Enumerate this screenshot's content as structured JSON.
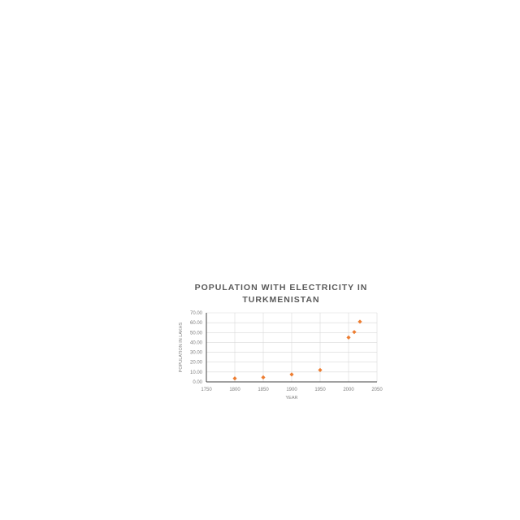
{
  "chart_data": {
    "type": "scatter",
    "title": "POPULATION WITH ELECTRICITY IN TURKMENISTAN",
    "xlabel": "YEAR",
    "ylabel": "POPULATION IN LAKHS",
    "xlim": [
      1750,
      2050
    ],
    "ylim": [
      0,
      70
    ],
    "xticks": [
      "1750",
      "1800",
      "1850",
      "1900",
      "1950",
      "2000",
      "2050"
    ],
    "yticks": [
      "0.00",
      "10.00",
      "20.00",
      "30.00",
      "40.00",
      "50.00",
      "60.00",
      "70.00"
    ],
    "grid": true,
    "series": [
      {
        "color": "#ed7d31",
        "marker": "diamond",
        "points": [
          {
            "x": 1800,
            "y": 3.5
          },
          {
            "x": 1850,
            "y": 4.5
          },
          {
            "x": 1900,
            "y": 7.5
          },
          {
            "x": 1950,
            "y": 12.0
          },
          {
            "x": 2000,
            "y": 45.0
          },
          {
            "x": 2010,
            "y": 50.5
          },
          {
            "x": 2020,
            "y": 61.0
          }
        ]
      }
    ]
  }
}
